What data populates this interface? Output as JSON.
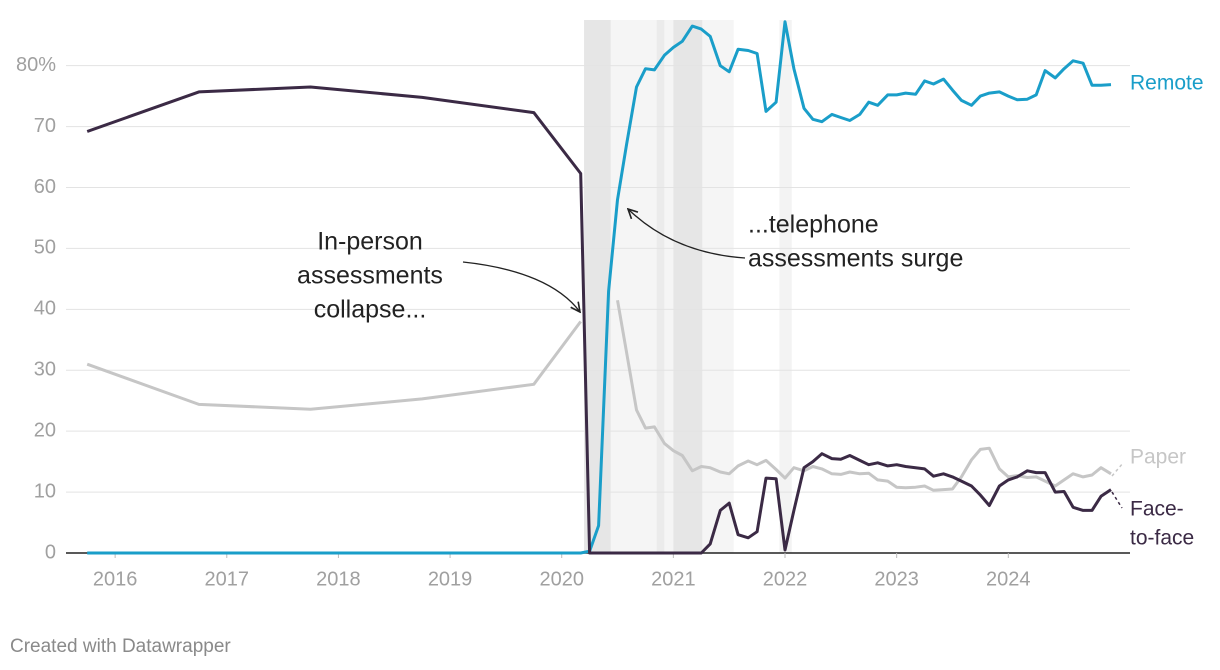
{
  "chart_data": {
    "type": "line",
    "footer": "Created with Datawrapper",
    "xlim": [
      2015.56,
      2025.09
    ],
    "xticks": [
      2016,
      2017,
      2018,
      2019,
      2020,
      2021,
      2022,
      2023,
      2024
    ],
    "ylim": [
      0,
      87.5
    ],
    "yticks": [
      0,
      10,
      20,
      30,
      40,
      50,
      60,
      70,
      {
        "value": 80,
        "label": "80%"
      }
    ],
    "grid": true,
    "shaded_periods": [
      {
        "start": 2020.2,
        "end": 2020.44,
        "color": "#e6e6e6"
      },
      {
        "start": 2020.44,
        "end": 2020.85,
        "color": "#f5f5f5"
      },
      {
        "start": 2020.85,
        "end": 2020.92,
        "color": "#ebebeb"
      },
      {
        "start": 2020.92,
        "end": 2021.0,
        "color": "#f5f5f5"
      },
      {
        "start": 2021.0,
        "end": 2021.26,
        "color": "#e6e6e6"
      },
      {
        "start": 2021.26,
        "end": 2021.54,
        "color": "#f5f5f5"
      },
      {
        "start": 2021.95,
        "end": 2022.06,
        "color": "#f3f3f3"
      }
    ],
    "annotations": [
      {
        "lines": [
          "In-person",
          "assessments",
          "collapse..."
        ]
      },
      {
        "lines": [
          "...telephone",
          "assessments surge"
        ]
      }
    ],
    "x": [
      2015.75,
      2016.75,
      2017.75,
      2018.75,
      2019.75,
      2020.17,
      2020.25,
      2020.33,
      2020.42,
      2020.5,
      2020.58,
      2020.67,
      2020.75,
      2020.83,
      2020.92,
      2021.0,
      2021.08,
      2021.17,
      2021.25,
      2021.33,
      2021.42,
      2021.5,
      2021.58,
      2021.67,
      2021.75,
      2021.83,
      2021.92,
      2022.0,
      2022.08,
      2022.17,
      2022.25,
      2022.33,
      2022.42,
      2022.5,
      2022.58,
      2022.67,
      2022.75,
      2022.83,
      2022.92,
      2023.0,
      2023.08,
      2023.17,
      2023.25,
      2023.33,
      2023.42,
      2023.5,
      2023.58,
      2023.67,
      2023.75,
      2023.83,
      2023.92,
      2024.0,
      2024.08,
      2024.17,
      2024.25,
      2024.33,
      2024.42,
      2024.5,
      2024.58,
      2024.67,
      2024.75,
      2024.83,
      2024.92
    ],
    "series": [
      {
        "name": [
          "Paper"
        ],
        "color": "#c6c6c6",
        "values": [
          31,
          24.4,
          23.6,
          25.3,
          27.7,
          38,
          null,
          null,
          null,
          41.5,
          33,
          23.5,
          20.5,
          20.7,
          18,
          16.8,
          16,
          13.5,
          14.2,
          14,
          13.3,
          13,
          14.3,
          15.1,
          14.5,
          15.2,
          13.7,
          12.3,
          14,
          13.5,
          14.2,
          13.8,
          13,
          12.9,
          13.3,
          13,
          13.1,
          12,
          11.8,
          10.8,
          10.7,
          10.8,
          11,
          10.3,
          10.4,
          10.5,
          12.5,
          15.3,
          17,
          17.2,
          13.8,
          12.5,
          12.7,
          12.4,
          12.5,
          11.8,
          11,
          12,
          13,
          12.5,
          12.8,
          14,
          13
        ]
      },
      {
        "name": [
          "Remote"
        ],
        "color": "#1a9ec9",
        "values": [
          0,
          0,
          0,
          0,
          0,
          0,
          0.3,
          4.5,
          43,
          58,
          67,
          76.5,
          79.5,
          79.3,
          81.7,
          83,
          84,
          86.5,
          86,
          84.8,
          80,
          79,
          82.7,
          82.5,
          82,
          72.5,
          74,
          87.2,
          79.5,
          73,
          71.2,
          70.8,
          72,
          71.5,
          71,
          72,
          74,
          73.5,
          75.2,
          75.2,
          75.5,
          75.3,
          77.5,
          77,
          77.8,
          76,
          74.3,
          73.5,
          75,
          75.5,
          75.7,
          75,
          74.4,
          74.5,
          75.2,
          79.2,
          78,
          79.5,
          80.8,
          80.4,
          76.8,
          76.8,
          76.9
        ]
      },
      {
        "name": [
          "Face-",
          "to-face"
        ],
        "color": "#3b2a45",
        "values": [
          69.2,
          75.7,
          76.5,
          74.8,
          72.3,
          62.3,
          0,
          0,
          0,
          0,
          0,
          0,
          0,
          0,
          0,
          0,
          0,
          0,
          0,
          1.5,
          7,
          8.2,
          3,
          2.5,
          3.5,
          12.3,
          12.2,
          0.5,
          7,
          14,
          15,
          16.3,
          15.5,
          15.4,
          16,
          15.2,
          14.5,
          14.8,
          14.3,
          14.5,
          14.2,
          14,
          13.8,
          12.6,
          13,
          12.5,
          11.8,
          11,
          9.5,
          7.8,
          11,
          12,
          12.5,
          13.5,
          13.2,
          13.2,
          10,
          10.1,
          7.5,
          7,
          7,
          9.3,
          10.4
        ]
      }
    ]
  }
}
